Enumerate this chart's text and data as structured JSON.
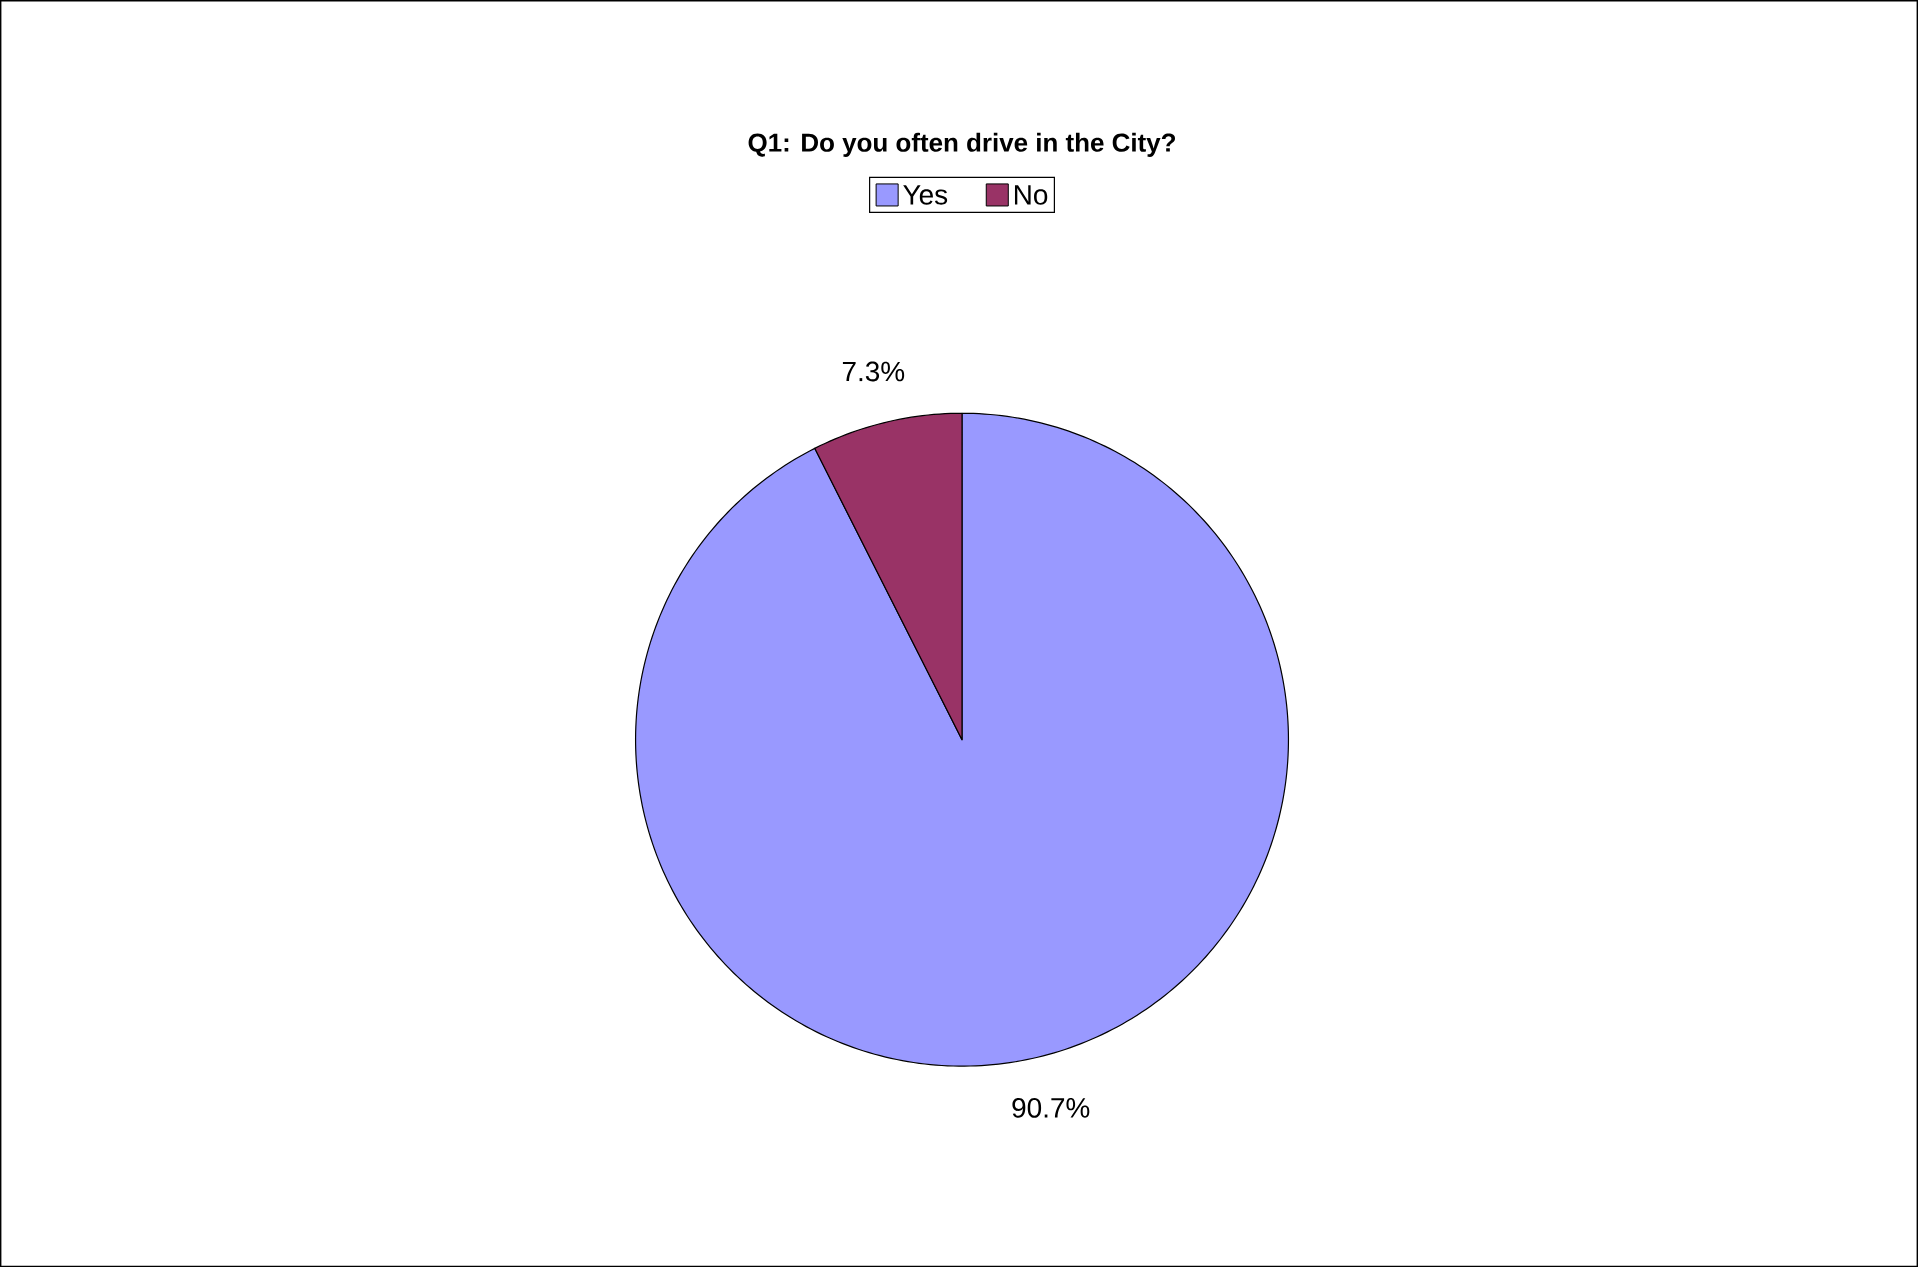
{
  "chart_data": {
    "type": "pie",
    "title": "Q1: Do you often drive in the City?",
    "categories": [
      "Yes",
      "No"
    ],
    "values": [
      90.7,
      7.3
    ],
    "value_labels": [
      "90.7%",
      "7.3%"
    ],
    "colors": [
      "#9999ff",
      "#993366"
    ],
    "legend": "top"
  }
}
